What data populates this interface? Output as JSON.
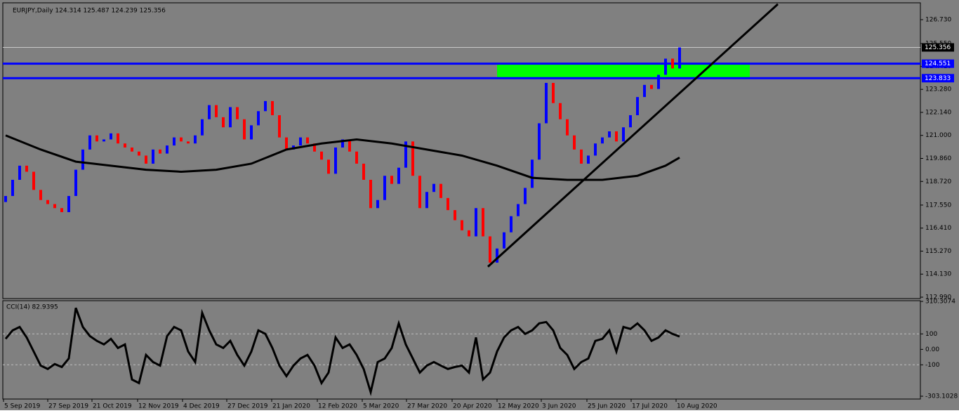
{
  "chart_data": [
    {
      "type": "candlestick",
      "title": "EURJPY,Daily  124.314 125.487 124.239 125.356",
      "open": [
        117.7,
        118.0,
        118.8,
        119.5,
        119.2,
        118.3,
        117.8,
        117.6,
        117.4,
        117.2,
        118.0,
        119.3,
        120.3,
        121.0,
        120.7,
        120.8,
        121.1,
        120.6,
        120.4,
        120.2,
        120.0,
        119.6,
        120.3,
        120.1,
        120.5,
        120.9,
        120.7,
        120.6,
        121.0,
        121.8,
        122.5,
        121.9,
        121.4,
        122.4,
        121.8,
        120.8,
        121.5,
        122.2,
        122.7,
        122.0,
        120.9,
        120.3,
        120.5,
        120.9,
        120.6,
        120.2,
        119.8,
        119.1,
        120.4,
        120.8,
        120.2,
        119.6,
        118.8,
        117.4,
        117.8,
        119.0,
        118.6,
        119.4,
        120.7,
        119.0,
        117.4,
        118.2,
        118.6,
        117.9,
        117.3,
        116.8,
        116.3,
        116.0,
        117.4,
        116.0,
        114.7,
        115.4,
        116.2,
        117.0,
        117.6,
        118.4,
        119.8,
        121.6,
        123.6,
        122.6,
        121.8,
        121.0,
        120.3,
        119.6,
        120.0,
        120.6,
        120.9,
        121.2,
        120.7,
        121.4,
        122.0,
        122.9,
        123.5,
        123.3,
        124.0,
        124.8,
        124.314
      ],
      "close": [
        118.0,
        118.8,
        119.5,
        119.2,
        118.3,
        117.8,
        117.6,
        117.4,
        117.2,
        118.0,
        119.3,
        120.3,
        121.0,
        120.7,
        120.8,
        121.1,
        120.6,
        120.4,
        120.2,
        120.0,
        119.6,
        120.3,
        120.1,
        120.5,
        120.9,
        120.7,
        120.6,
        121.0,
        121.8,
        122.5,
        121.9,
        121.4,
        122.4,
        121.8,
        120.8,
        121.5,
        122.2,
        122.7,
        122.0,
        120.9,
        120.3,
        120.5,
        120.9,
        120.6,
        120.2,
        119.8,
        119.1,
        120.4,
        120.8,
        120.2,
        119.6,
        118.8,
        117.4,
        117.8,
        119.0,
        118.6,
        119.4,
        120.7,
        119.0,
        117.4,
        118.2,
        118.6,
        117.9,
        117.3,
        116.8,
        116.3,
        116.0,
        117.4,
        116.0,
        114.7,
        115.4,
        116.2,
        117.0,
        117.6,
        118.4,
        119.8,
        121.6,
        123.6,
        122.6,
        121.8,
        121.0,
        120.3,
        119.6,
        120.0,
        120.6,
        120.9,
        121.2,
        120.7,
        121.4,
        122.0,
        122.9,
        123.5,
        123.3,
        124.0,
        124.8,
        124.314,
        125.356
      ],
      "bull_color": "#0000ff",
      "bear_color": "#ff0000",
      "xlim": [
        -0.4,
        130.3
      ],
      "ylim": [
        112.92,
        127.565
      ],
      "yticks": [
        {
          "value": 126.73,
          "label": "126.730"
        },
        {
          "value": 125.55,
          "label": "125.550"
        },
        {
          "value": 124.41,
          "label": "124.410"
        },
        {
          "value": 123.28,
          "label": "123.280"
        },
        {
          "value": 122.14,
          "label": "122.140"
        },
        {
          "value": 121,
          "label": "121.000"
        },
        {
          "value": 119.86,
          "label": "119.860"
        },
        {
          "value": 118.72,
          "label": "118.720"
        },
        {
          "value": 117.55,
          "label": "117.550"
        },
        {
          "value": 116.41,
          "label": "116.410"
        },
        {
          "value": 115.27,
          "label": "115.270"
        },
        {
          "value": 114.13,
          "label": "114.130"
        },
        {
          "value": 112.99,
          "label": "112.990"
        }
      ],
      "xticks": [
        {
          "value": -0.3,
          "label": "5 Sep 2019"
        },
        {
          "value": 6,
          "label": "27 Sep 2019"
        },
        {
          "value": 12.3,
          "label": "21 Oct 2019"
        },
        {
          "value": 18.8,
          "label": "12 Nov 2019"
        },
        {
          "value": 25.2,
          "label": "4 Dec 2019"
        },
        {
          "value": 31.5,
          "label": "27 Dec 2019"
        },
        {
          "value": 37.9,
          "label": "21 Jan 2020"
        },
        {
          "value": 44.4,
          "label": "12 Feb 2020"
        },
        {
          "value": 50.8,
          "label": "5 Mar 2020"
        },
        {
          "value": 57.1,
          "label": "27 Mar 2020"
        },
        {
          "value": 63.6,
          "label": "20 Apr 2020"
        },
        {
          "value": 70,
          "label": "12 May 2020"
        },
        {
          "value": 76.3,
          "label": "3 Jun 2020"
        },
        {
          "value": 82.8,
          "label": "25 Jun 2020"
        },
        {
          "value": 89.1,
          "label": "17 Jul 2020"
        },
        {
          "value": 95.5,
          "label": "10 Aug 2020"
        }
      ],
      "ma": {
        "x": [
          0,
          5,
          10,
          15,
          20,
          25,
          30,
          35,
          40,
          45,
          50,
          55,
          60,
          65,
          70,
          75,
          80,
          85,
          90,
          94,
          96
        ],
        "values": [
          121.0,
          120.3,
          119.7,
          119.5,
          119.3,
          119.2,
          119.3,
          119.6,
          120.3,
          120.6,
          120.8,
          120.6,
          120.3,
          120.0,
          119.5,
          118.9,
          118.8,
          118.8,
          119.0,
          119.5,
          119.9
        ],
        "color": "#000000"
      },
      "trendline": {
        "x": [
          68.7,
          110
        ],
        "values": [
          114.5,
          127.5
        ],
        "color": "#000000"
      },
      "zone": {
        "x": [
          70,
          106
        ],
        "values": [
          123.833,
          124.551
        ],
        "color": "#00ff00"
      },
      "levels": [
        {
          "value": 124.551,
          "color": "#0000ff"
        },
        {
          "value": 123.833,
          "color": "#0000ff"
        }
      ],
      "current_price": 125.356
    },
    {
      "type": "line",
      "title": "CCI(14) 82.9395",
      "color": "#000000",
      "values": [
        68,
        123,
        145,
        77,
        -14,
        -105,
        -127,
        -95,
        -114,
        -59,
        268,
        145,
        86,
        55,
        32,
        68,
        9,
        32,
        -195,
        -218,
        -36,
        -82,
        -105,
        86,
        145,
        123,
        -14,
        -82,
        236,
        123,
        32,
        9,
        55,
        -36,
        -105,
        -14,
        123,
        100,
        9,
        -105,
        -173,
        -105,
        -59,
        -36,
        -105,
        -218,
        -150,
        77,
        9,
        32,
        -36,
        -127,
        -277,
        -82,
        -59,
        9,
        168,
        32,
        -59,
        -150,
        -105,
        -82,
        -105,
        -127,
        -114,
        -105,
        -150,
        77,
        -195,
        -150,
        -14,
        77,
        123,
        145,
        100,
        123,
        168,
        177,
        123,
        9,
        -36,
        -127,
        -82,
        -59,
        55,
        68,
        123,
        -14,
        145,
        132,
        168,
        123,
        55,
        77,
        123,
        100,
        82.9395
      ],
      "ylim": [
        -303.1028,
        310.3074
      ],
      "yticks": [
        310.3074,
        100,
        {
          "value": 0,
          "label": "0.00"
        },
        -100,
        -303.1028
      ],
      "levels": [
        100,
        -100
      ]
    }
  ]
}
